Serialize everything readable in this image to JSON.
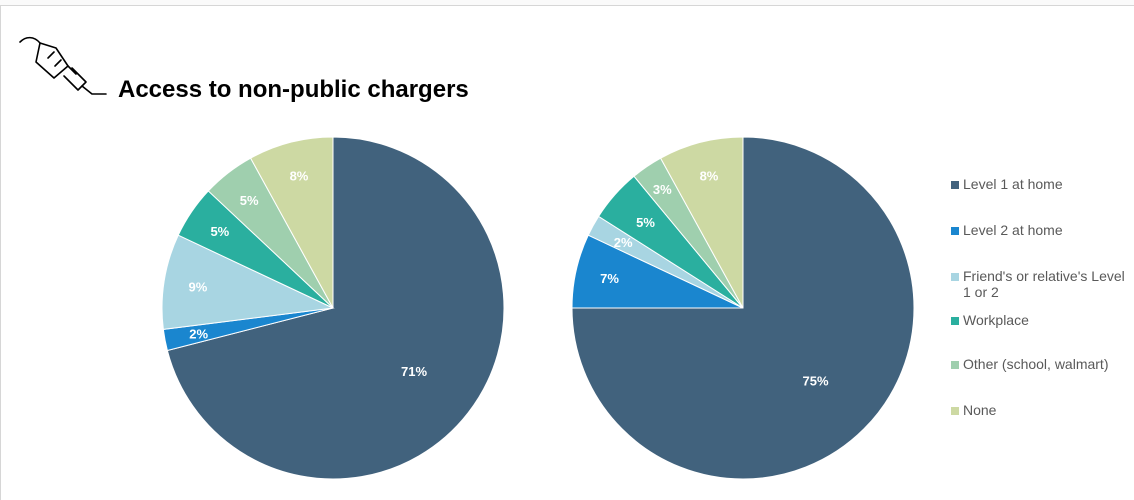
{
  "title": "Access to non-public chargers",
  "icons": {
    "title_icon": "plug-icon"
  },
  "colors": {
    "Level 1 at home": "#41627d",
    "Level 2 at home": "#1a86cf",
    "Friend's or relative's Level 1 or 2": "#a8d5e2",
    "Workplace": "#2aaf9f",
    "Other (school, walmart)": "#9fcfae",
    "None": "#cdd9a3"
  },
  "legend": {
    "position": "right",
    "items": [
      {
        "label": "Level 1 at home",
        "color": "#41627d"
      },
      {
        "label": "Level 2 at home",
        "color": "#1a86cf"
      },
      {
        "label": "Friend's or relative's Level 1 or 2",
        "color": "#a8d5e2"
      },
      {
        "label": "Workplace",
        "color": "#2aaf9f"
      },
      {
        "label": "Other (school, walmart)",
        "color": "#9fcfae"
      },
      {
        "label": "None",
        "color": "#cdd9a3"
      }
    ]
  },
  "chart_data": [
    {
      "type": "pie",
      "categories": [
        "Level 1 at home",
        "Level 2 at home",
        "Friend's or relative's Level 1 or 2",
        "Workplace",
        "Other (school, walmart)",
        "None"
      ],
      "values": [
        71,
        2,
        9,
        5,
        5,
        8
      ],
      "labels": [
        "71%",
        "2%",
        "9%",
        "5%",
        "5%",
        "8%"
      ]
    },
    {
      "type": "pie",
      "categories": [
        "Level 1 at home",
        "Level 2 at home",
        "Friend's or relative's Level 1 or 2",
        "Workplace",
        "Other (school, walmart)",
        "None"
      ],
      "values": [
        75,
        7,
        2,
        5,
        3,
        8
      ],
      "labels": [
        "75%",
        "7%",
        "2%",
        "5%",
        "3%",
        "8%"
      ]
    }
  ]
}
